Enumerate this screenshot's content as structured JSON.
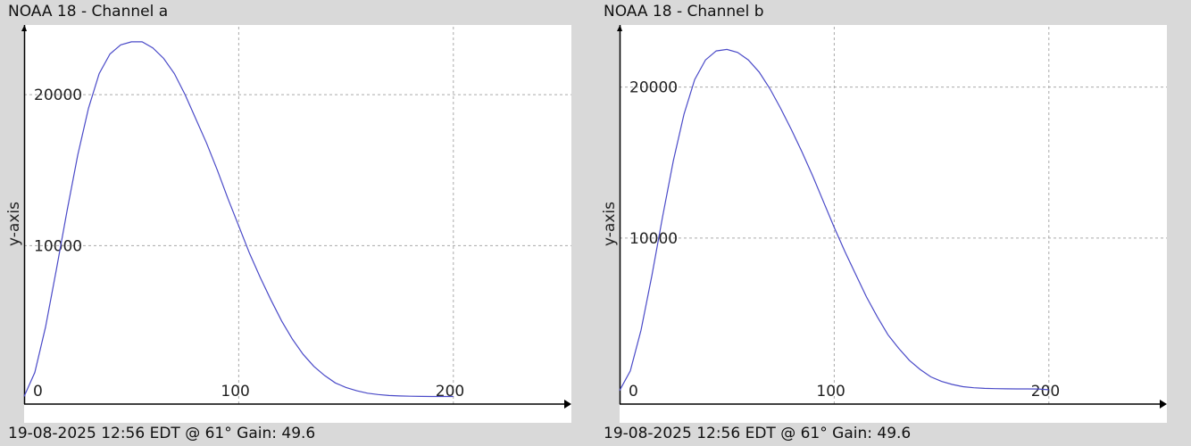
{
  "charts_meta": [
    {
      "title": "NOAA 18 - Channel a",
      "footer": "19-08-2025 12:56 EDT @ 61° Gain: 49.6"
    },
    {
      "title": "NOAA 18 - Channel b",
      "footer": "19-08-2025 12:56 EDT @ 61° Gain: 49.6"
    }
  ],
  "chart_data": [
    {
      "type": "line",
      "title": "NOAA 18 - Channel a",
      "ylabel": "y-axis",
      "xlim": [
        0,
        255
      ],
      "ylim": [
        -500,
        24500
      ],
      "x_ticks": [
        0,
        100,
        200
      ],
      "y_ticks": [
        10000,
        20000
      ],
      "grid": true,
      "line_color": "#4a4ac8",
      "series": [
        {
          "x": [
            0,
            5,
            10,
            15,
            20,
            25,
            30,
            35,
            40,
            45,
            50,
            55,
            60,
            65,
            70,
            75,
            80,
            85,
            90,
            95,
            100,
            105,
            110,
            115,
            120,
            125,
            130,
            135,
            140,
            145,
            150,
            155,
            160,
            165,
            170,
            175,
            180,
            185,
            190,
            195,
            200
          ],
          "y": [
            0,
            1600,
            4600,
            8400,
            12300,
            16000,
            19100,
            21400,
            22700,
            23300,
            23500,
            23500,
            23100,
            22400,
            21400,
            20000,
            18400,
            16800,
            15000,
            13100,
            11300,
            9500,
            7900,
            6400,
            5000,
            3800,
            2800,
            2000,
            1400,
            900,
            600,
            380,
            220,
            130,
            70,
            40,
            20,
            10,
            5,
            2,
            0
          ]
        }
      ]
    },
    {
      "type": "line",
      "title": "NOAA 18 - Channel b",
      "ylabel": "y-axis",
      "xlim": [
        0,
        255
      ],
      "ylim": [
        -1000,
        24000
      ],
      "x_ticks": [
        0,
        100,
        200
      ],
      "y_ticks": [
        10000,
        20000
      ],
      "grid": true,
      "line_color": "#4a4ac8",
      "series": [
        {
          "x": [
            0,
            5,
            10,
            15,
            20,
            25,
            30,
            35,
            40,
            45,
            50,
            55,
            60,
            65,
            70,
            75,
            80,
            85,
            90,
            95,
            100,
            105,
            110,
            115,
            120,
            125,
            130,
            135,
            140,
            145,
            150,
            155,
            160,
            165,
            170,
            175,
            180,
            185,
            190,
            195,
            200
          ],
          "y": [
            -100,
            1200,
            3900,
            7500,
            11400,
            15100,
            18200,
            20500,
            21800,
            22400,
            22500,
            22300,
            21800,
            21000,
            19900,
            18600,
            17200,
            15700,
            14100,
            12400,
            10700,
            9100,
            7600,
            6100,
            4800,
            3600,
            2700,
            1900,
            1300,
            800,
            500,
            300,
            150,
            80,
            40,
            20,
            10,
            5,
            2,
            0,
            -50
          ]
        }
      ]
    }
  ]
}
